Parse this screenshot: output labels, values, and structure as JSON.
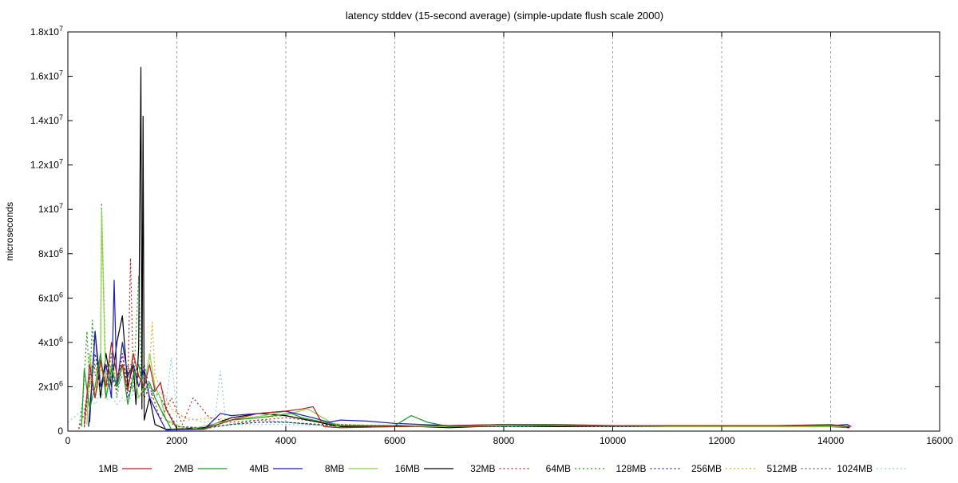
{
  "chart_data": {
    "type": "line",
    "title": "latency stddev (15-second average) (simple-update flush scale 2000)",
    "ylabel": "microseconds",
    "xlabel": "",
    "xlim": [
      0,
      16000
    ],
    "ylim": [
      0,
      18000000
    ],
    "grid": "vertical dashed",
    "legend_placement": "bottom",
    "x_ticks": [
      {
        "value": 0,
        "label": "0"
      },
      {
        "value": 2000,
        "label": "2000"
      },
      {
        "value": 4000,
        "label": "4000"
      },
      {
        "value": 6000,
        "label": "6000"
      },
      {
        "value": 8000,
        "label": "8000"
      },
      {
        "value": 10000,
        "label": "10000"
      },
      {
        "value": 12000,
        "label": "12000"
      },
      {
        "value": 14000,
        "label": "14000"
      },
      {
        "value": 16000,
        "label": "16000"
      }
    ],
    "y_ticks": [
      {
        "value": 0,
        "base": "0",
        "exp": ""
      },
      {
        "value": 2000000,
        "base": "2x10",
        "exp": "6"
      },
      {
        "value": 4000000,
        "base": "4x10",
        "exp": "6"
      },
      {
        "value": 6000000,
        "base": "6x10",
        "exp": "6"
      },
      {
        "value": 8000000,
        "base": "8x10",
        "exp": "6"
      },
      {
        "value": 10000000,
        "base": "1x10",
        "exp": "7"
      },
      {
        "value": 12000000,
        "base": "1.2x10",
        "exp": "7"
      },
      {
        "value": 14000000,
        "base": "1.4x10",
        "exp": "7"
      },
      {
        "value": 16000000,
        "base": "1.6x10",
        "exp": "7"
      },
      {
        "value": 18000000,
        "base": "1.8x10",
        "exp": "7"
      }
    ],
    "series": [
      {
        "name": "1MB",
        "color": "#b22222",
        "dash": "solid",
        "x": [
          300,
          400,
          500,
          600,
          700,
          800,
          900,
          1000,
          1100,
          1200,
          1300,
          1400,
          1500,
          1600,
          1700,
          1800,
          2000,
          2500,
          3000,
          3500,
          4000,
          4300,
          4500,
          4700,
          5000,
          6000,
          7000,
          8000,
          9000,
          10000,
          11000,
          12000,
          13000,
          14000,
          14350
        ],
        "y": [
          300000,
          3000000,
          1500000,
          3200000,
          2000000,
          4000000,
          2500000,
          3000000,
          1800000,
          3500000,
          2500000,
          2000000,
          3000000,
          1800000,
          2200000,
          1000000,
          100000,
          80000,
          500000,
          800000,
          900000,
          1000000,
          1100000,
          200000,
          150000,
          200000,
          250000,
          300000,
          300000,
          250000,
          250000,
          250000,
          250000,
          300000,
          200000
        ]
      },
      {
        "name": "2MB",
        "color": "#1a9a1a",
        "dash": "solid",
        "x": [
          250,
          300,
          400,
          500,
          600,
          700,
          800,
          900,
          1000,
          1100,
          1200,
          1300,
          1400,
          1500,
          1600,
          1700,
          1900,
          2500,
          3000,
          3500,
          3800,
          4100,
          4300,
          5000,
          6000,
          6300,
          6600,
          7000,
          8000,
          9000,
          10000,
          11000,
          12000,
          13000,
          14000,
          14350
        ],
        "y": [
          200000,
          2800000,
          1000000,
          2000000,
          3500000,
          1500000,
          2800000,
          2000000,
          3000000,
          1200000,
          2500000,
          3000000,
          1800000,
          2200000,
          1500000,
          1000000,
          80000,
          100000,
          500000,
          600000,
          700000,
          800000,
          600000,
          250000,
          250000,
          700000,
          400000,
          200000,
          300000,
          250000,
          250000,
          250000,
          250000,
          250000,
          250000,
          200000
        ]
      },
      {
        "name": "4MB",
        "color": "#1c1cb4",
        "dash": "solid",
        "x": [
          400,
          500,
          600,
          700,
          800,
          850,
          900,
          1000,
          1100,
          1200,
          1300,
          1400,
          1500,
          1600,
          1800,
          2500,
          2800,
          3000,
          3500,
          4000,
          4500,
          4800,
          5000,
          5500,
          6000,
          7000,
          8000,
          9000,
          10000,
          11000,
          12000,
          13000,
          14000,
          14300,
          14380
        ],
        "y": [
          400000,
          4500000,
          2000000,
          3000000,
          1500000,
          6800000,
          2000000,
          4000000,
          2500000,
          3000000,
          2000000,
          2800000,
          1500000,
          1000000,
          50000,
          80000,
          800000,
          700000,
          800000,
          900000,
          600000,
          400000,
          500000,
          450000,
          350000,
          250000,
          300000,
          250000,
          250000,
          250000,
          250000,
          250000,
          250000,
          300000,
          200000
        ]
      },
      {
        "name": "8MB",
        "color": "#8fd14f",
        "dash": "solid",
        "x": [
          350,
          400,
          500,
          600,
          620,
          700,
          800,
          900,
          1000,
          1100,
          1200,
          1300,
          1400,
          1500,
          1600,
          1700,
          1800,
          2200,
          3000,
          3600,
          4000,
          4100,
          4400,
          5000,
          6000,
          7000,
          8000,
          9000,
          10000,
          11000,
          12000,
          13000,
          14000,
          14300
        ],
        "y": [
          300000,
          3500000,
          1500000,
          2500000,
          10000000,
          1500000,
          3000000,
          2000000,
          4000000,
          2500000,
          3000000,
          1500000,
          2000000,
          3500000,
          2000000,
          1500000,
          500000,
          60000,
          500000,
          700000,
          900000,
          800000,
          1000000,
          150000,
          200000,
          200000,
          250000,
          250000,
          250000,
          200000,
          200000,
          200000,
          200000,
          180000
        ]
      },
      {
        "name": "16MB",
        "color": "#000000",
        "dash": "solid",
        "x": [
          380,
          450,
          500,
          600,
          700,
          800,
          900,
          1000,
          1100,
          1200,
          1250,
          1300,
          1340,
          1360,
          1380,
          1400,
          1500,
          1600,
          1800,
          2500,
          3000,
          3500,
          4000,
          5000,
          6000,
          7000,
          8000,
          9000,
          10000,
          11000,
          12000,
          13000,
          14000,
          14350
        ],
        "y": [
          200000,
          2500000,
          4500000,
          1500000,
          3500000,
          2000000,
          4000000,
          5200000,
          2000000,
          3000000,
          1200000,
          3800000,
          16400000,
          1000000,
          14200000,
          500000,
          1500000,
          300000,
          80000,
          150000,
          600000,
          800000,
          700000,
          200000,
          250000,
          150000,
          250000,
          200000,
          250000,
          200000,
          200000,
          200000,
          200000,
          150000
        ]
      },
      {
        "name": "32MB",
        "color": "#b22222",
        "dash": "2,3",
        "x": [
          200,
          300,
          400,
          500,
          600,
          700,
          800,
          900,
          1000,
          1100,
          1150,
          1200,
          1300,
          1400,
          1500,
          1700,
          1900,
          2100,
          2300,
          2600,
          3000,
          3500,
          4000,
          5000,
          6000,
          7000,
          8000,
          9000,
          10000,
          11000,
          12000,
          13000,
          14000
        ],
        "y": [
          100000,
          800000,
          2500000,
          1500000,
          3000000,
          2000000,
          2500000,
          1800000,
          3500000,
          2000000,
          7800000,
          2500000,
          3000000,
          1500000,
          2000000,
          500000,
          1500000,
          300000,
          1500000,
          600000,
          400000,
          500000,
          600000,
          300000,
          200000,
          250000,
          250000,
          250000,
          250000,
          250000,
          250000,
          250000,
          250000
        ]
      },
      {
        "name": "64MB",
        "color": "#1a9a1a",
        "dash": "2,3",
        "x": [
          200,
          280,
          350,
          400,
          450,
          500,
          600,
          620,
          700,
          800,
          900,
          1000,
          1100,
          1200,
          1300,
          1350,
          1400,
          1500,
          1700,
          2000,
          2500,
          3000,
          3500,
          4000,
          5000,
          6000,
          7000,
          8000,
          9000,
          10000,
          11000,
          12000,
          13000,
          14000
        ],
        "y": [
          100000,
          1500000,
          4500000,
          2000000,
          5000000,
          2500000,
          3000000,
          10300000,
          2000000,
          3500000,
          1500000,
          3000000,
          2500000,
          1800000,
          7000000,
          2500000,
          3000000,
          2000000,
          1500000,
          200000,
          100000,
          300000,
          500000,
          400000,
          200000,
          250000,
          200000,
          200000,
          200000,
          200000,
          200000,
          200000,
          200000,
          200000
        ]
      },
      {
        "name": "128MB",
        "color": "#1c1cb4",
        "dash": "2,3",
        "x": [
          300,
          400,
          500,
          600,
          700,
          800,
          900,
          1000,
          1100,
          1200,
          1300,
          1400,
          1500,
          1600,
          1800,
          2000,
          2500,
          3000,
          3500,
          4000,
          5000,
          6000,
          7000,
          8000,
          9000,
          10000,
          11000,
          12000,
          13000,
          14000
        ],
        "y": [
          200000,
          2500000,
          3500000,
          2000000,
          3000000,
          2500000,
          2000000,
          3500000,
          1500000,
          2500000,
          3000000,
          2500000,
          1500000,
          2000000,
          1000000,
          200000,
          150000,
          300000,
          400000,
          400000,
          250000,
          200000,
          200000,
          200000,
          200000,
          200000,
          200000,
          200000,
          200000,
          200000
        ]
      },
      {
        "name": "256MB",
        "color": "#e6a817",
        "dash": "2,3",
        "x": [
          300,
          400,
          500,
          600,
          620,
          700,
          800,
          900,
          1000,
          1100,
          1200,
          1300,
          1400,
          1500,
          1550,
          1600,
          1700,
          1900,
          2200,
          2700,
          3000,
          3500,
          4000,
          5000,
          6000,
          7000,
          8000,
          9000,
          10000,
          11000,
          12000,
          13000,
          14000
        ],
        "y": [
          150000,
          2000000,
          3000000,
          2500000,
          9500000,
          2000000,
          3500000,
          2000000,
          3000000,
          2500000,
          3500000,
          2000000,
          2500000,
          3000000,
          4900000,
          2500000,
          2000000,
          1000000,
          500000,
          600000,
          500000,
          600000,
          700000,
          300000,
          250000,
          200000,
          250000,
          250000,
          250000,
          250000,
          250000,
          250000,
          250000
        ]
      },
      {
        "name": "512MB",
        "color": "#555555",
        "dash": "2,3",
        "x": [
          300,
          400,
          500,
          600,
          700,
          800,
          900,
          1000,
          1100,
          1200,
          1300,
          1400,
          1500,
          1600,
          1800,
          2000,
          2500,
          3000,
          3500,
          4000,
          5000,
          6000,
          7000,
          8000,
          9000,
          10000,
          11000,
          12000,
          13000,
          14000
        ],
        "y": [
          200000,
          2500000,
          3000000,
          2000000,
          2500000,
          3000000,
          2000000,
          2500000,
          3000000,
          2000000,
          2500000,
          2000000,
          1500000,
          1500000,
          500000,
          200000,
          150000,
          300000,
          400000,
          400000,
          200000,
          200000,
          200000,
          200000,
          200000,
          200000,
          200000,
          200000,
          200000,
          200000
        ]
      },
      {
        "name": "1024MB",
        "color": "#8fd0d8",
        "dash": "2,3",
        "x": [
          0,
          100,
          200,
          300,
          400,
          500,
          600,
          700,
          800,
          900,
          1000,
          1100,
          1200,
          1300,
          1400,
          1500,
          1600,
          1700,
          1800,
          1900,
          2000,
          2200,
          2500,
          2700,
          2800,
          2900,
          3000,
          3500,
          4000,
          5000,
          6000,
          7000,
          8000,
          9000,
          10000,
          11000,
          12000,
          13000,
          14000
        ],
        "y": [
          400000,
          600000,
          800000,
          1000000,
          1500000,
          1200000,
          1800000,
          1400000,
          1600000,
          1200000,
          1500000,
          1300000,
          1700000,
          1500000,
          1800000,
          2000000,
          1500000,
          1800000,
          1200000,
          3300000,
          800000,
          600000,
          400000,
          500000,
          2700000,
          400000,
          300000,
          300000,
          300000,
          250000,
          250000,
          200000,
          200000,
          200000,
          200000,
          200000,
          200000,
          200000,
          200000
        ]
      }
    ]
  }
}
